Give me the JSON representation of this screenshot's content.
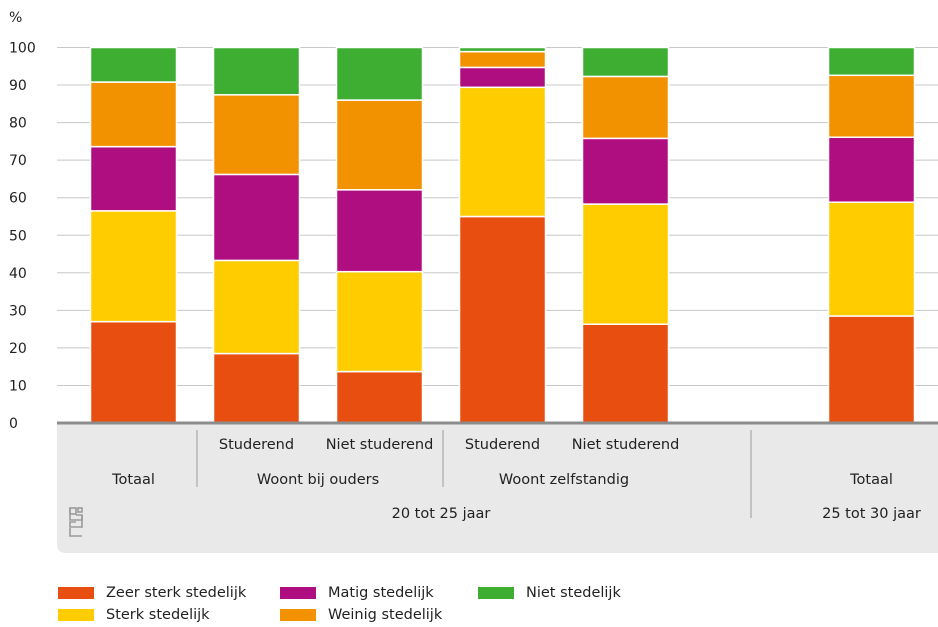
{
  "chart_data": {
    "type": "bar",
    "stacked": true,
    "ylabel": "%",
    "ylim": [
      0,
      100
    ],
    "yticks": [
      0,
      10,
      20,
      30,
      40,
      50,
      60,
      70,
      80,
      90,
      100
    ],
    "grid": true,
    "categories": [
      "Totaal",
      "Studerend",
      "Niet studerend",
      "Studerend",
      "Niet studerend",
      "Totaal"
    ],
    "bar_slots": [
      0,
      1,
      2,
      3,
      4,
      6
    ],
    "group_labels": {
      "level2": [
        "Woont bij ouders",
        "Woont zelfstandig"
      ],
      "level3": [
        "20 tot 25 jaar",
        "25 tot 30 jaar"
      ]
    },
    "series": [
      {
        "name": "Zeer sterk stedelijk",
        "color": "#e84e10",
        "values": [
          27,
          18.5,
          13.7,
          55,
          26.3,
          28.5
        ]
      },
      {
        "name": "Sterk stedelijk",
        "color": "#ffcc00",
        "values": [
          29.5,
          24.8,
          26.6,
          34.4,
          32,
          30.3
        ]
      },
      {
        "name": "Matig stedelijk",
        "color": "#af0e80",
        "values": [
          17.1,
          22.9,
          21.8,
          5.3,
          17.5,
          17.3
        ]
      },
      {
        "name": "Weinig stedelijk",
        "color": "#f39200",
        "values": [
          17.2,
          21.2,
          23.9,
          4.2,
          16.5,
          16.5
        ]
      },
      {
        "name": "Niet stedelijk",
        "color": "#3eae32",
        "values": [
          9.2,
          12.6,
          14,
          1.1,
          7.7,
          7.4
        ]
      }
    ],
    "legend_position": "bottom"
  }
}
